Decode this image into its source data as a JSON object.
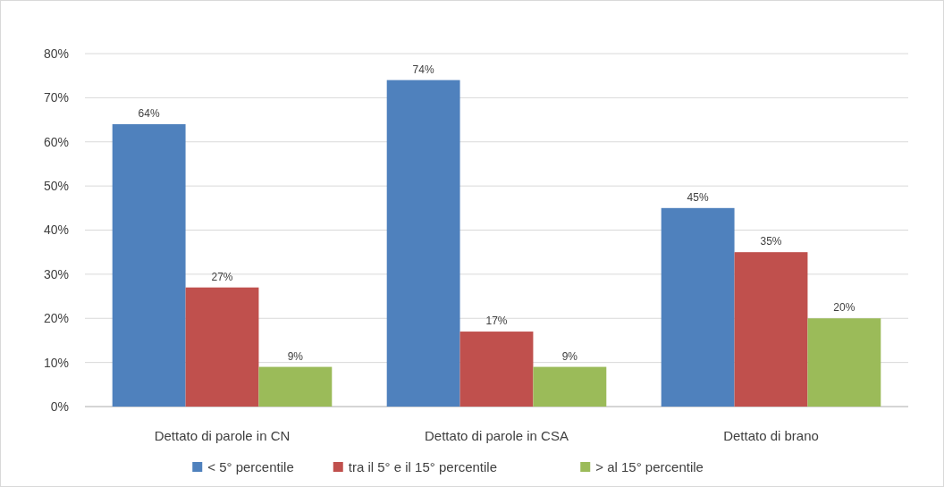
{
  "chart_data": {
    "type": "bar",
    "categories": [
      "Dettato di parole in CN",
      "Dettato di parole in CSA",
      "Dettato di brano"
    ],
    "series": [
      {
        "name": "< 5° percentile",
        "color": "#4f81bd",
        "values": [
          64,
          74,
          45
        ],
        "value_labels": [
          "64%",
          "74%",
          "45%"
        ]
      },
      {
        "name": "tra il 5° e il 15° percentile",
        "color": "#c0504d",
        "values": [
          27,
          17,
          35
        ],
        "value_labels": [
          "27%",
          "17%",
          "35%"
        ]
      },
      {
        "name": "> al 15° percentile",
        "color": "#9bbb59",
        "values": [
          9,
          9,
          20
        ],
        "value_labels": [
          "9%",
          "9%",
          "20%"
        ]
      }
    ],
    "ylim": [
      0,
      80
    ],
    "yticks": [
      {
        "value": 0,
        "label": "0%"
      },
      {
        "value": 10,
        "label": "10%"
      },
      {
        "value": 20,
        "label": "20%"
      },
      {
        "value": 30,
        "label": "30%"
      },
      {
        "value": 40,
        "label": "40%"
      },
      {
        "value": 50,
        "label": "50%"
      },
      {
        "value": 60,
        "label": "60%"
      },
      {
        "value": 70,
        "label": "70%"
      },
      {
        "value": 80,
        "label": "80%"
      }
    ],
    "grid": "y",
    "legend": "bottom"
  }
}
